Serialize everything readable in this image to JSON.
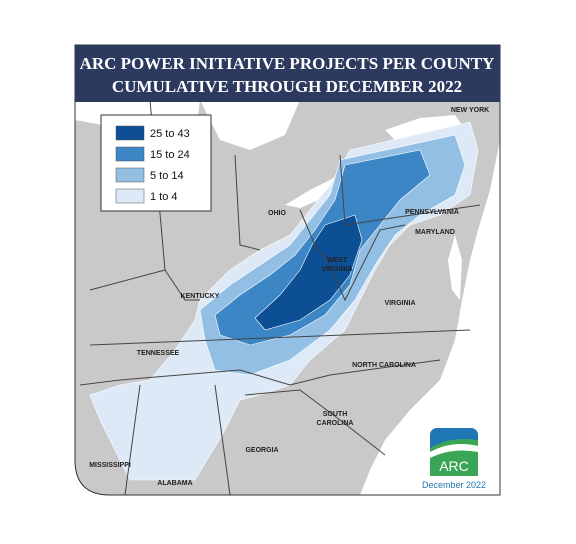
{
  "title": [
    "ARC POWER INITIATIVE PROJECTS PER COUNTY",
    "CUMULATIVE THROUGH DECEMBER 2022"
  ],
  "legend": [
    {
      "label": "25 to 43",
      "color": "#0d4f94"
    },
    {
      "label": "15 to 24",
      "color": "#3d86c6"
    },
    {
      "label": "5 to 14",
      "color": "#92bfe3"
    },
    {
      "label": "1 to 4",
      "color": "#dde9f6"
    }
  ],
  "state_labels": [
    [
      "NEW YORK"
    ],
    [
      "PENNSYLVANIA"
    ],
    [
      "OHIO"
    ],
    [
      "MARYLAND"
    ],
    [
      "WEST",
      "VIRGINIA"
    ],
    [
      "KENTUCKY"
    ],
    [
      "VIRGINIA"
    ],
    [
      "TENNESSEE"
    ],
    [
      "NORTH CAROLINA"
    ],
    [
      "SOUTH",
      "CAROLINA"
    ],
    [
      "GEORGIA"
    ],
    [
      "MISSISSIPPI"
    ],
    [
      "ALABAMA"
    ]
  ],
  "logo": "ARC",
  "date": "December 2022"
}
